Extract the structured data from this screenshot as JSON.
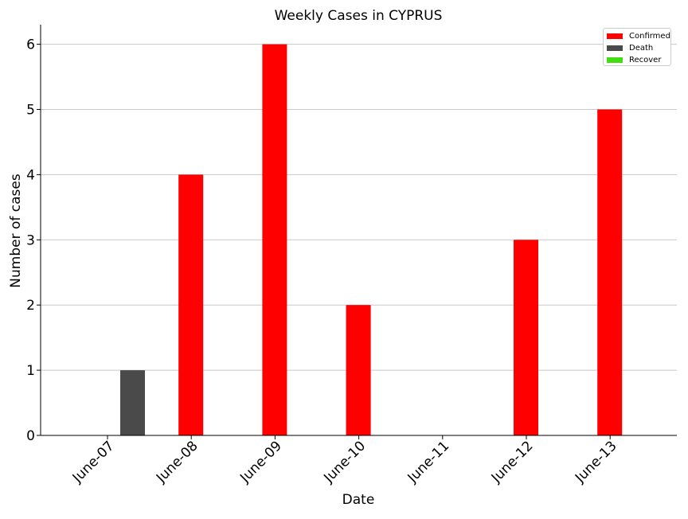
{
  "chart_data": {
    "type": "bar",
    "title": "Weekly Cases in CYPRUS",
    "xlabel": "Date",
    "ylabel": "Number of cases",
    "categories": [
      "June-07",
      "June-08",
      "June-09",
      "June-10",
      "June-11",
      "June-12",
      "June-13"
    ],
    "ylim": [
      0,
      6.3
    ],
    "yticks": [
      0,
      1,
      2,
      3,
      4,
      5,
      6
    ],
    "grid": "horizontal",
    "legend_position": "top-right",
    "series": [
      {
        "name": "Confirmed",
        "color": "#ff0000",
        "values": [
          0,
          4,
          6,
          2,
          0,
          3,
          5
        ]
      },
      {
        "name": "Death",
        "color": "#4a4a4a",
        "values": [
          1,
          0,
          0,
          0,
          0,
          0,
          0
        ]
      },
      {
        "name": "Recover",
        "color": "#44dd11",
        "values": [
          0,
          0,
          0,
          0,
          0,
          0,
          0
        ]
      }
    ]
  }
}
